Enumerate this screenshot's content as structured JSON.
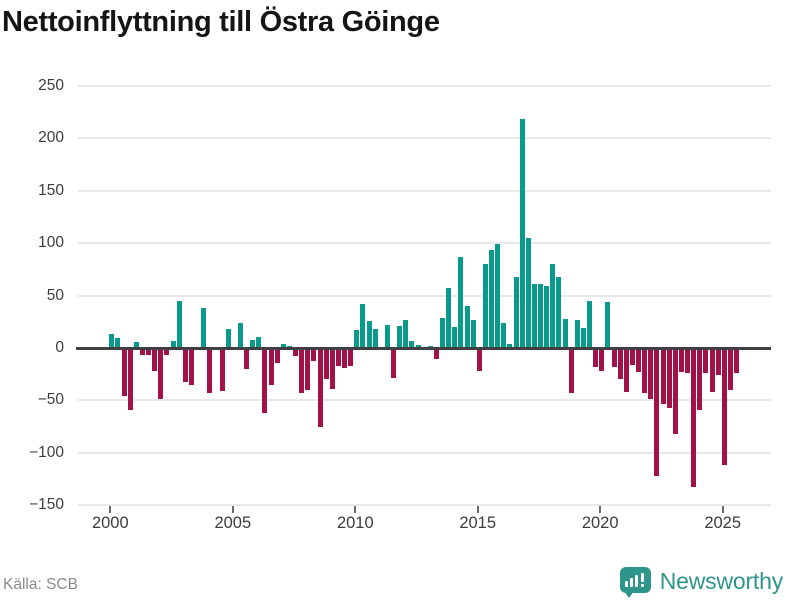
{
  "title": "Nettoinflyttning till Östra Göinge",
  "source": "Källa: SCB",
  "brand": {
    "name": "Newsworthy",
    "icon": "bar-chart-speech-bubble-icon"
  },
  "colors": {
    "positive": "#0A9A8C",
    "negative": "#A01248",
    "brand": "#2E958B",
    "zero_line": "#413F42",
    "gridline": "#E8E8E8"
  },
  "chart_data": {
    "type": "bar",
    "title": "Nettoinflyttning till Östra Göinge",
    "xlabel": "",
    "ylabel": "",
    "x_start": "2000-Q1",
    "x_end": "2025-Q3",
    "frequency": "quarterly",
    "x_tick_labels": [
      "2000",
      "2005",
      "2010",
      "2015",
      "2020",
      "2025"
    ],
    "x_tick_years": [
      2000,
      2005,
      2010,
      2015,
      2020,
      2025
    ],
    "y_tick_labels": [
      "250",
      "200",
      "150",
      "100",
      "50",
      "0",
      "−50",
      "−100",
      "−150"
    ],
    "y_ticks": [
      250,
      200,
      150,
      100,
      50,
      0,
      -50,
      -100,
      -150
    ],
    "ylim": [
      -150,
      250
    ],
    "grid": "horizontal",
    "legend": "none",
    "values": [
      13,
      10,
      -46,
      -59,
      6,
      -7,
      -7,
      -22,
      -49,
      -7,
      7,
      45,
      -32,
      -35,
      0,
      38,
      -43,
      0,
      -41,
      18,
      0,
      24,
      -20,
      8,
      11,
      -62,
      -35,
      -14,
      4,
      2,
      -8,
      -43,
      -40,
      -12,
      -75,
      -30,
      -39,
      -17,
      -19,
      -17,
      17,
      42,
      26,
      18,
      0,
      22,
      -29,
      21,
      27,
      7,
      3,
      0,
      2,
      -10,
      29,
      57,
      20,
      87,
      40,
      27,
      -22,
      80,
      94,
      99,
      24,
      4,
      68,
      219,
      105,
      61,
      61,
      59,
      80,
      68,
      28,
      -43,
      27,
      19,
      45,
      -18,
      -22,
      44,
      -18,
      -30,
      -42,
      -16,
      -23,
      -43,
      -49,
      -122,
      -53,
      -57,
      -82,
      -23,
      -24,
      -133,
      -59,
      -24,
      -42,
      -26,
      -112,
      -40,
      -24
    ]
  }
}
